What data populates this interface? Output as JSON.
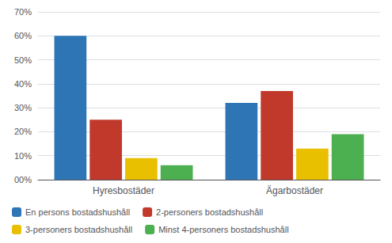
{
  "chart_data": {
    "type": "bar",
    "categories": [
      "Hyresbostäder",
      "Ägarbostäder"
    ],
    "series": [
      {
        "name": "En persons bostadshushåll",
        "color": "#2E75B6",
        "values": [
          0.6,
          0.32
        ]
      },
      {
        "name": "2-personers bostadshushåll",
        "color": "#C0392B",
        "values": [
          0.25,
          0.37
        ]
      },
      {
        "name": "3-personers bostadshushåll",
        "color": "#E8C000",
        "values": [
          0.09,
          0.13
        ]
      },
      {
        "name": "Minst 4-personers bostadshushåll",
        "color": "#4CAF50",
        "values": [
          0.06,
          0.19
        ]
      }
    ],
    "ylim": [
      0,
      0.7
    ],
    "yticks": [
      {
        "value": 0.0,
        "label": "00%"
      },
      {
        "value": 0.1,
        "label": "10%"
      },
      {
        "value": 0.2,
        "label": "20%"
      },
      {
        "value": 0.3,
        "label": "30%"
      },
      {
        "value": 0.4,
        "label": "40%"
      },
      {
        "value": 0.5,
        "label": "50%"
      },
      {
        "value": 0.6,
        "label": "60%"
      },
      {
        "value": 0.7,
        "label": "70%"
      }
    ],
    "grid": true,
    "legend": "bottom"
  }
}
